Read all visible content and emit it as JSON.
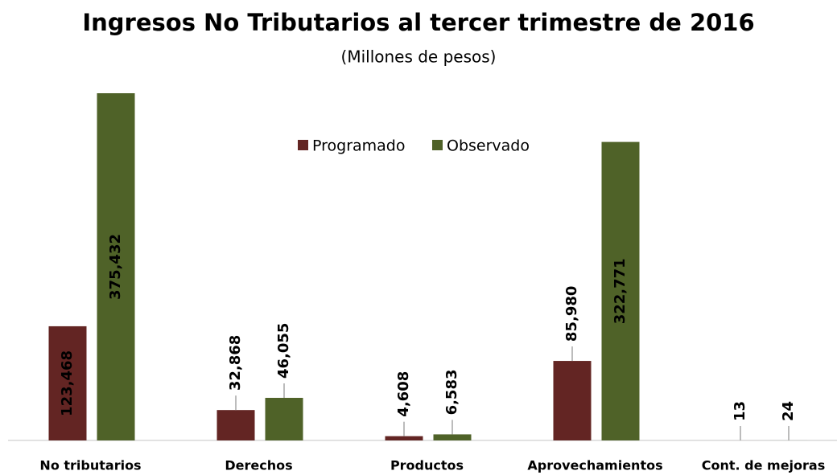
{
  "chart_data": {
    "type": "bar",
    "title": "Ingresos No Tributarios al tercer trimestre de 2016",
    "subtitle": "(Millones de pesos)",
    "categories": [
      "No tributarios",
      "Derechos",
      "Productos",
      "Aprovechamientos",
      "Cont. de mejoras"
    ],
    "series": [
      {
        "name": "Programado",
        "color": "#632523",
        "values": [
          123468,
          32868,
          4608,
          85980,
          13
        ],
        "value_labels": [
          "123,468",
          "32,868",
          "4,608",
          "85,980",
          "13"
        ]
      },
      {
        "name": "Observado",
        "color": "#4f6228",
        "values": [
          375432,
          46055,
          6583,
          322771,
          24
        ],
        "value_labels": [
          "375,432",
          "46,055",
          "6,583",
          "322,771",
          "24"
        ]
      }
    ],
    "legend": "top"
  }
}
